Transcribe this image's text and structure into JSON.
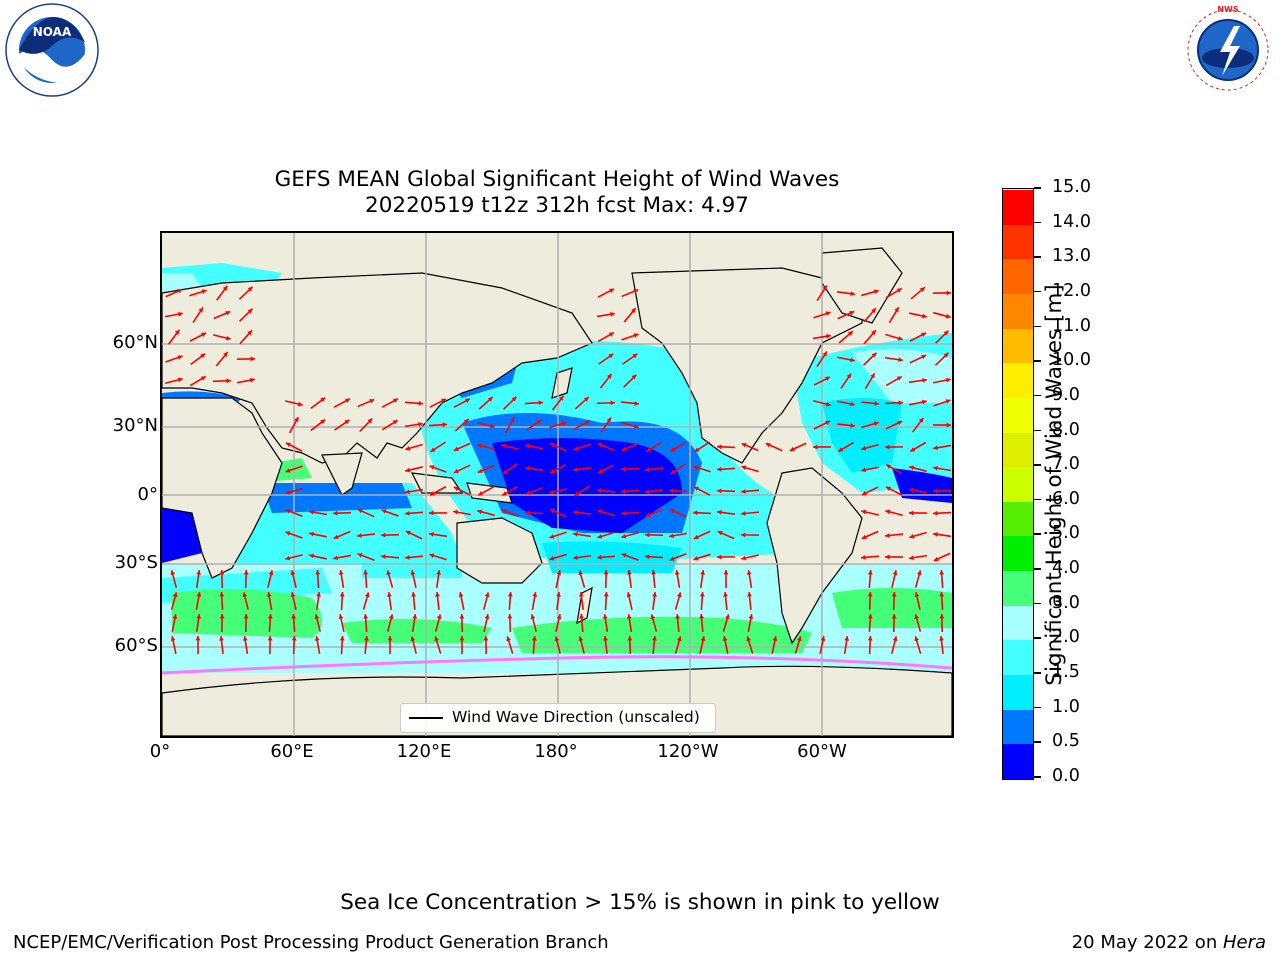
{
  "title_line1": "GEFS MEAN Global Significant Height of Wind Waves",
  "title_line2": "20220519 t12z 312h fcst   Max: 4.97",
  "lat_labels": [
    "60°N",
    "30°N",
    "0°",
    "30°S",
    "60°S"
  ],
  "lon_labels": [
    "0°",
    "60°E",
    "120°E",
    "180°",
    "120°W",
    "60°W"
  ],
  "legend_label": "Wind Wave Direction (unscaled)",
  "colorbar": {
    "label": "Significant Height of Wind Waves [m]",
    "ticks": [
      "0.0",
      "0.5",
      "1.0",
      "1.5",
      "2.0",
      "3.0",
      "4.0",
      "5.0",
      "6.0",
      "7.0",
      "8.0",
      "9.0",
      "10.0",
      "11.0",
      "12.0",
      "13.0",
      "14.0",
      "15.0"
    ],
    "colors": [
      "#0000ff",
      "#0077ff",
      "#00eeff",
      "#44ffff",
      "#aaffff",
      "#44ff77",
      "#00ee00",
      "#55ee00",
      "#ccff00",
      "#ddee00",
      "#eeff00",
      "#ffee00",
      "#ffbb00",
      "#ff8800",
      "#ff6600",
      "#ff3300",
      "#ff0000"
    ]
  },
  "colors": {
    "land": "#eeecdc",
    "arrow": "#ff0000",
    "grid": "#b0b0b0",
    "sea_ice": "#ff77ff"
  },
  "logos": {
    "left": "NOAA",
    "right": "NATIONAL WEATHER SERVICE"
  },
  "note": "Sea Ice Concentration > 15% is shown in pink to yellow",
  "footer_left": "NCEP/EMC/Verification Post Processing Product Generation Branch",
  "footer_date": "20 May 2022 on ",
  "footer_host": "Hera"
}
